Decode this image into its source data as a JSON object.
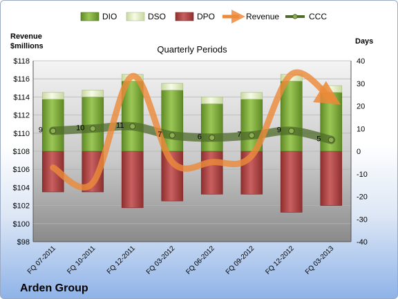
{
  "chart_data": {
    "type": "bar",
    "title": "Quarterly Periods",
    "company": "Arden Group",
    "left_axis_label": [
      "Revenue",
      "$millions"
    ],
    "right_axis_label": "Days",
    "categories": [
      "FQ 07-2011",
      "FQ 10-2011",
      "FQ 12-2011",
      "FQ 03-2012",
      "FQ 06-2012",
      "FQ 09-2012",
      "FQ 12-2012",
      "FQ 03-2013"
    ],
    "left_axis": {
      "min": 98,
      "max": 118,
      "step": 2,
      "tick_labels": [
        "$98",
        "$100",
        "$102",
        "$104",
        "$106",
        "$108",
        "$110",
        "$112",
        "$114",
        "$116",
        "$118"
      ]
    },
    "right_axis": {
      "min": -40,
      "max": 40,
      "step": 10,
      "tick_labels": [
        "-40",
        "-30",
        "-20",
        "-10",
        "0",
        "10",
        "20",
        "30",
        "40"
      ]
    },
    "legend": {
      "placement": "top",
      "items": [
        {
          "name": "DIO",
          "kind": "bar",
          "color": "#7da63a"
        },
        {
          "name": "DSO",
          "kind": "bar",
          "color": "#e6f0c8"
        },
        {
          "name": "DPO",
          "kind": "bar",
          "color": "#b04545"
        },
        {
          "name": "Revenue",
          "kind": "arrow",
          "color": "#ec8a3a"
        },
        {
          "name": "CCC",
          "kind": "line",
          "color": "#4f6b2a"
        }
      ]
    },
    "series": [
      {
        "name": "DIO",
        "axis": "right",
        "values": [
          23,
          24,
          31,
          27,
          21,
          23,
          31,
          26
        ],
        "color": "#7da63a"
      },
      {
        "name": "DSO",
        "axis": "right",
        "values": [
          3,
          3,
          3,
          3,
          3,
          3,
          3,
          3
        ],
        "color": "#e6f0c8"
      },
      {
        "name": "DPO",
        "axis": "right",
        "values": [
          -18,
          -18,
          -25,
          -22,
          -19,
          -19,
          -27,
          -24
        ],
        "color": "#b04545"
      },
      {
        "name": "Revenue",
        "axis": "left",
        "values": [
          106.2,
          104.5,
          116.3,
          106.8,
          106.8,
          107.5,
          116.5,
          113.8
        ],
        "color": "#ec8a3a"
      },
      {
        "name": "CCC",
        "axis": "right",
        "values": [
          9,
          10,
          11,
          7,
          6,
          7,
          9,
          5
        ],
        "labels": [
          "9",
          "10",
          "11",
          "7",
          "6",
          "7",
          "9",
          "5"
        ],
        "color": "#4f6b2a"
      }
    ],
    "grid": true
  }
}
